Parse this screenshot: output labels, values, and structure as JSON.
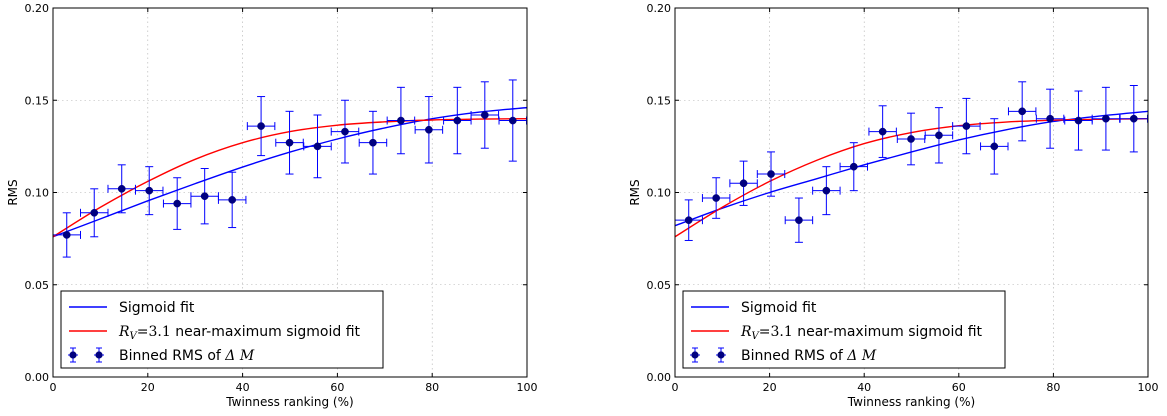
{
  "chart_data": [
    {
      "type": "scatter",
      "xlabel": "Twinness ranking (%)",
      "ylabel": "RMS",
      "xlim": [
        0,
        100
      ],
      "ylim": [
        0,
        0.2
      ],
      "xticks": [
        "0",
        "20",
        "40",
        "60",
        "80",
        "100"
      ],
      "yticks": [
        "0.00",
        "0.05",
        "0.10",
        "0.15",
        "0.20"
      ],
      "grid": true,
      "legend_position": "bottom-left",
      "series": [
        {
          "name": "Sigmoid fit",
          "kind": "line",
          "color": "#0000ff",
          "x": [
            0,
            10,
            20,
            30,
            40,
            50,
            60,
            70,
            80,
            90,
            100
          ],
          "y": [
            0.076,
            0.0857,
            0.0955,
            0.1048,
            0.1138,
            0.1219,
            0.129,
            0.135,
            0.14,
            0.1436,
            0.146
          ]
        },
        {
          "name": "$R_V = 3.1$ near-maximum sigmoid fit",
          "kind": "line",
          "color": "#ff0000",
          "x": [
            0,
            10,
            20,
            30,
            40,
            50,
            60,
            70,
            80,
            90,
            100
          ],
          "y": [
            0.076,
            0.092,
            0.106,
            0.118,
            0.127,
            0.133,
            0.1365,
            0.1383,
            0.1393,
            0.1398,
            0.14
          ]
        },
        {
          "name": "Binned RMS of $\\Delta M$",
          "kind": "errorbar",
          "color": "#0000ff",
          "x": [
            2.9,
            8.7,
            14.5,
            20.3,
            26.2,
            32.0,
            37.8,
            43.9,
            49.9,
            55.8,
            61.6,
            67.5,
            73.4,
            79.3,
            85.3,
            91.1,
            97.0
          ],
          "y": [
            0.077,
            0.089,
            0.102,
            0.101,
            0.094,
            0.098,
            0.096,
            0.136,
            0.127,
            0.125,
            0.133,
            0.127,
            0.139,
            0.134,
            0.139,
            0.142,
            0.139
          ],
          "yerr": [
            0.012,
            0.013,
            0.013,
            0.013,
            0.014,
            0.015,
            0.015,
            0.016,
            0.017,
            0.017,
            0.017,
            0.017,
            0.018,
            0.018,
            0.018,
            0.018,
            0.022
          ],
          "xerr": 2.9
        }
      ]
    },
    {
      "type": "scatter",
      "xlabel": "Twinness ranking (%)",
      "ylabel": "RMS",
      "xlim": [
        0,
        100
      ],
      "ylim": [
        0,
        0.2
      ],
      "xticks": [
        "0",
        "20",
        "40",
        "60",
        "80",
        "100"
      ],
      "yticks": [
        "0.00",
        "0.05",
        "0.10",
        "0.15",
        "0.20"
      ],
      "grid": true,
      "legend_position": "bottom-left",
      "series": [
        {
          "name": "Sigmoid fit",
          "kind": "line",
          "color": "#0000ff",
          "x": [
            0,
            10,
            20,
            30,
            40,
            50,
            60,
            70,
            80,
            90,
            100
          ],
          "y": [
            0.082,
            0.0915,
            0.1,
            0.1075,
            0.115,
            0.122,
            0.1285,
            0.134,
            0.1385,
            0.1415,
            0.144
          ]
        },
        {
          "name": "$R_V = 3.1$ near-maximum sigmoid fit",
          "kind": "line",
          "color": "#ff0000",
          "x": [
            0,
            10,
            20,
            30,
            40,
            50,
            60,
            70,
            80,
            90,
            100
          ],
          "y": [
            0.076,
            0.092,
            0.106,
            0.1175,
            0.1265,
            0.1325,
            0.1362,
            0.1382,
            0.1392,
            0.1397,
            0.14
          ]
        },
        {
          "name": "Binned RMS of $\\Delta M$",
          "kind": "errorbar",
          "color": "#0000ff",
          "x": [
            2.9,
            8.7,
            14.5,
            20.3,
            26.2,
            32.0,
            37.8,
            43.9,
            49.9,
            55.8,
            61.6,
            67.5,
            73.4,
            79.3,
            85.3,
            91.1,
            97.0
          ],
          "y": [
            0.085,
            0.097,
            0.105,
            0.11,
            0.085,
            0.101,
            0.114,
            0.133,
            0.129,
            0.131,
            0.136,
            0.125,
            0.144,
            0.14,
            0.139,
            0.14,
            0.14
          ],
          "yerr": [
            0.011,
            0.011,
            0.012,
            0.012,
            0.012,
            0.013,
            0.013,
            0.014,
            0.014,
            0.015,
            0.015,
            0.015,
            0.016,
            0.016,
            0.016,
            0.017,
            0.018
          ],
          "xerr": 2.9
        }
      ]
    }
  ]
}
